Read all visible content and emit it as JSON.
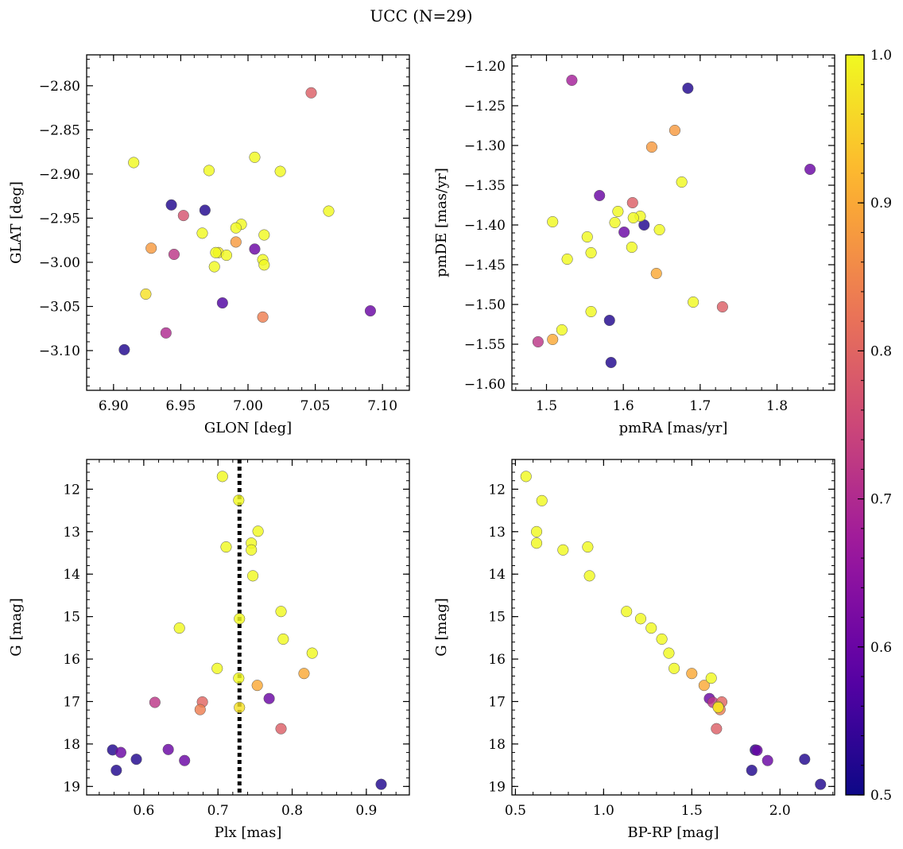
{
  "figure": {
    "title": "UCC (N=29)"
  },
  "colors": {
    "edge": "#555555",
    "dashed_line": "#000000",
    "colormap": [
      "#0d0887",
      "#5c01a6",
      "#9c179e",
      "#cc4778",
      "#ed7953",
      "#fdb42f",
      "#f0f921"
    ]
  },
  "colorbar": {
    "vmin": 0.5,
    "vmax": 1.0,
    "ticks": [
      0.5,
      0.6,
      0.7,
      0.8,
      0.9,
      1.0
    ],
    "tick_labels": [
      "0.5",
      "0.6",
      "0.7",
      "0.8",
      "0.9",
      "1.0"
    ]
  },
  "chart_data": [
    {
      "type": "scatter",
      "id": "glon-glat",
      "xlabel": "GLON [deg]",
      "ylabel": "GLAT [deg]",
      "xlim": [
        6.88,
        7.12
      ],
      "ylim": [
        -3.145,
        -2.765
      ],
      "y_inverted": false,
      "xticks": [
        6.9,
        6.95,
        7.0,
        7.05,
        7.1
      ],
      "xtick_labels": [
        "6.90",
        "6.95",
        "7.00",
        "7.05",
        "7.10"
      ],
      "yticks": [
        -2.8,
        -2.85,
        -2.9,
        -2.95,
        -3.0,
        -3.05,
        -3.1
      ],
      "ytick_labels": [
        "−2.80",
        "−2.85",
        "−2.90",
        "−2.95",
        "−3.00",
        "−3.05",
        "−3.10"
      ],
      "x_minor_step": 0.01,
      "y_minor_step": 0.01,
      "points": [
        {
          "x": 7.047,
          "y": -2.808,
          "c": 0.79
        },
        {
          "x": 6.915,
          "y": -2.887,
          "c": 1.0
        },
        {
          "x": 6.971,
          "y": -2.896,
          "c": 1.0
        },
        {
          "x": 7.005,
          "y": -2.881,
          "c": 1.0
        },
        {
          "x": 7.024,
          "y": -2.897,
          "c": 1.0
        },
        {
          "x": 6.943,
          "y": -2.935,
          "c": 0.52
        },
        {
          "x": 6.968,
          "y": -2.941,
          "c": 0.52
        },
        {
          "x": 6.952,
          "y": -2.947,
          "c": 0.77
        },
        {
          "x": 7.06,
          "y": -2.942,
          "c": 1.0
        },
        {
          "x": 6.995,
          "y": -2.957,
          "c": 1.0
        },
        {
          "x": 6.991,
          "y": -2.961,
          "c": 1.0
        },
        {
          "x": 6.966,
          "y": -2.967,
          "c": 1.0
        },
        {
          "x": 7.012,
          "y": -2.969,
          "c": 1.0
        },
        {
          "x": 6.991,
          "y": -2.977,
          "c": 0.88
        },
        {
          "x": 6.928,
          "y": -2.984,
          "c": 0.88
        },
        {
          "x": 7.005,
          "y": -2.985,
          "c": 0.6
        },
        {
          "x": 6.945,
          "y": -2.991,
          "c": 0.72
        },
        {
          "x": 6.978,
          "y": -2.989,
          "c": 0.98
        },
        {
          "x": 6.976,
          "y": -2.989,
          "c": 1.0
        },
        {
          "x": 6.984,
          "y": -2.992,
          "c": 1.0
        },
        {
          "x": 7.011,
          "y": -2.997,
          "c": 1.0
        },
        {
          "x": 7.012,
          "y": -3.003,
          "c": 1.0
        },
        {
          "x": 6.975,
          "y": -3.005,
          "c": 1.0
        },
        {
          "x": 6.924,
          "y": -3.036,
          "c": 0.97
        },
        {
          "x": 6.981,
          "y": -3.046,
          "c": 0.57
        },
        {
          "x": 7.091,
          "y": -3.055,
          "c": 0.6
        },
        {
          "x": 7.011,
          "y": -3.062,
          "c": 0.84
        },
        {
          "x": 6.939,
          "y": -3.08,
          "c": 0.7
        },
        {
          "x": 6.908,
          "y": -3.099,
          "c": 0.52
        }
      ]
    },
    {
      "type": "scatter",
      "id": "pmra-pmde",
      "xlabel": "pmRA [mas/yr]",
      "ylabel": "pmDE [mas/yr]",
      "xlim": [
        1.455,
        1.875
      ],
      "ylim": [
        -1.608,
        -1.186
      ],
      "y_inverted": false,
      "xticks": [
        1.5,
        1.6,
        1.7,
        1.8
      ],
      "xtick_labels": [
        "1.5",
        "1.6",
        "1.7",
        "1.8"
      ],
      "yticks": [
        -1.2,
        -1.25,
        -1.3,
        -1.35,
        -1.4,
        -1.45,
        -1.5,
        -1.55,
        -1.6
      ],
      "ytick_labels": [
        "−1.20",
        "−1.25",
        "−1.30",
        "−1.35",
        "−1.40",
        "−1.45",
        "−1.50",
        "−1.55",
        "−1.60"
      ],
      "x_minor_step": 0.02,
      "y_minor_step": 0.01,
      "points": [
        {
          "x": 1.533,
          "y": -1.218,
          "c": 0.68
        },
        {
          "x": 1.684,
          "y": -1.228,
          "c": 0.52
        },
        {
          "x": 1.667,
          "y": -1.281,
          "c": 0.88
        },
        {
          "x": 1.637,
          "y": -1.302,
          "c": 0.88
        },
        {
          "x": 1.843,
          "y": -1.33,
          "c": 0.6
        },
        {
          "x": 1.676,
          "y": -1.346,
          "c": 1.0
        },
        {
          "x": 1.569,
          "y": -1.363,
          "c": 0.6
        },
        {
          "x": 1.612,
          "y": -1.372,
          "c": 0.79
        },
        {
          "x": 1.593,
          "y": -1.383,
          "c": 1.0
        },
        {
          "x": 1.622,
          "y": -1.389,
          "c": 1.0
        },
        {
          "x": 1.613,
          "y": -1.391,
          "c": 1.0
        },
        {
          "x": 1.508,
          "y": -1.396,
          "c": 1.0
        },
        {
          "x": 1.589,
          "y": -1.397,
          "c": 1.0
        },
        {
          "x": 1.627,
          "y": -1.4,
          "c": 0.52
        },
        {
          "x": 1.647,
          "y": -1.406,
          "c": 1.0
        },
        {
          "x": 1.601,
          "y": -1.409,
          "c": 0.6
        },
        {
          "x": 1.553,
          "y": -1.415,
          "c": 1.0
        },
        {
          "x": 1.611,
          "y": -1.428,
          "c": 1.0
        },
        {
          "x": 1.558,
          "y": -1.435,
          "c": 1.0
        },
        {
          "x": 1.527,
          "y": -1.443,
          "c": 1.0
        },
        {
          "x": 1.643,
          "y": -1.461,
          "c": 0.9
        },
        {
          "x": 1.691,
          "y": -1.497,
          "c": 1.0
        },
        {
          "x": 1.729,
          "y": -1.503,
          "c": 0.79
        },
        {
          "x": 1.558,
          "y": -1.509,
          "c": 1.0
        },
        {
          "x": 1.582,
          "y": -1.52,
          "c": 0.52
        },
        {
          "x": 1.52,
          "y": -1.532,
          "c": 1.0
        },
        {
          "x": 1.508,
          "y": -1.544,
          "c": 0.9
        },
        {
          "x": 1.489,
          "y": -1.547,
          "c": 0.72
        },
        {
          "x": 1.584,
          "y": -1.573,
          "c": 0.52
        }
      ]
    },
    {
      "type": "scatter",
      "id": "plx-g",
      "xlabel": "Plx [mas]",
      "ylabel": "G [mag]",
      "xlim": [
        0.523,
        0.958
      ],
      "ylim": [
        11.3,
        19.2
      ],
      "y_inverted": true,
      "xticks": [
        0.6,
        0.7,
        0.8,
        0.9
      ],
      "xtick_labels": [
        "0.6",
        "0.7",
        "0.8",
        "0.9"
      ],
      "yticks": [
        12,
        13,
        14,
        15,
        16,
        17,
        18,
        19
      ],
      "ytick_labels": [
        "12",
        "13",
        "14",
        "15",
        "16",
        "17",
        "18",
        "19"
      ],
      "x_minor_step": 0.02,
      "y_minor_step": 0.2,
      "vline": {
        "x": 0.729
      },
      "points": [
        {
          "x": 0.706,
          "y": 11.7,
          "c": 1.0
        },
        {
          "x": 0.728,
          "y": 12.26,
          "c": 1.0
        },
        {
          "x": 0.754,
          "y": 12.99,
          "c": 1.0
        },
        {
          "x": 0.745,
          "y": 13.27,
          "c": 1.0
        },
        {
          "x": 0.711,
          "y": 13.36,
          "c": 1.0
        },
        {
          "x": 0.745,
          "y": 13.43,
          "c": 1.0
        },
        {
          "x": 0.747,
          "y": 14.04,
          "c": 1.0
        },
        {
          "x": 0.785,
          "y": 14.88,
          "c": 1.0
        },
        {
          "x": 0.729,
          "y": 15.05,
          "c": 1.0
        },
        {
          "x": 0.648,
          "y": 15.27,
          "c": 1.0
        },
        {
          "x": 0.788,
          "y": 15.53,
          "c": 1.0
        },
        {
          "x": 0.827,
          "y": 15.86,
          "c": 1.0
        },
        {
          "x": 0.699,
          "y": 16.22,
          "c": 1.0
        },
        {
          "x": 0.816,
          "y": 16.34,
          "c": 0.9
        },
        {
          "x": 0.728,
          "y": 16.45,
          "c": 1.0
        },
        {
          "x": 0.753,
          "y": 16.62,
          "c": 0.9
        },
        {
          "x": 0.769,
          "y": 16.93,
          "c": 0.6
        },
        {
          "x": 0.615,
          "y": 17.02,
          "c": 0.72
        },
        {
          "x": 0.679,
          "y": 17.01,
          "c": 0.8
        },
        {
          "x": 0.729,
          "y": 17.14,
          "c": 0.97
        },
        {
          "x": 0.676,
          "y": 17.19,
          "c": 0.84
        },
        {
          "x": 0.785,
          "y": 17.64,
          "c": 0.79
        },
        {
          "x": 0.558,
          "y": 18.14,
          "c": 0.52
        },
        {
          "x": 0.569,
          "y": 18.2,
          "c": 0.6
        },
        {
          "x": 0.633,
          "y": 18.13,
          "c": 0.6
        },
        {
          "x": 0.59,
          "y": 18.36,
          "c": 0.52
        },
        {
          "x": 0.655,
          "y": 18.39,
          "c": 0.6
        },
        {
          "x": 0.563,
          "y": 18.62,
          "c": 0.52
        },
        {
          "x": 0.92,
          "y": 18.95,
          "c": 0.52
        }
      ]
    },
    {
      "type": "scatter",
      "id": "bprp-g",
      "xlabel": "BP-RP [mag]",
      "ylabel": "G [mag]",
      "xlim": [
        0.48,
        2.31
      ],
      "ylim": [
        11.3,
        19.2
      ],
      "y_inverted": true,
      "xticks": [
        0.5,
        1.0,
        1.5,
        2.0
      ],
      "xtick_labels": [
        "0.5",
        "1.0",
        "1.5",
        "2.0"
      ],
      "yticks": [
        12,
        13,
        14,
        15,
        16,
        17,
        18,
        19
      ],
      "ytick_labels": [
        "12",
        "13",
        "14",
        "15",
        "16",
        "17",
        "18",
        "19"
      ],
      "x_minor_step": 0.1,
      "y_minor_step": 0.2,
      "points": [
        {
          "x": 0.56,
          "y": 11.7,
          "c": 1.0
        },
        {
          "x": 0.65,
          "y": 12.27,
          "c": 1.0
        },
        {
          "x": 0.62,
          "y": 13.0,
          "c": 1.0
        },
        {
          "x": 0.62,
          "y": 13.27,
          "c": 1.0
        },
        {
          "x": 0.91,
          "y": 13.36,
          "c": 1.0
        },
        {
          "x": 0.77,
          "y": 13.43,
          "c": 1.0
        },
        {
          "x": 0.92,
          "y": 14.04,
          "c": 1.0
        },
        {
          "x": 1.13,
          "y": 14.88,
          "c": 1.0
        },
        {
          "x": 1.21,
          "y": 15.05,
          "c": 1.0
        },
        {
          "x": 1.27,
          "y": 15.27,
          "c": 1.0
        },
        {
          "x": 1.33,
          "y": 15.53,
          "c": 1.0
        },
        {
          "x": 1.37,
          "y": 15.86,
          "c": 1.0
        },
        {
          "x": 1.4,
          "y": 16.22,
          "c": 1.0
        },
        {
          "x": 1.5,
          "y": 16.34,
          "c": 0.9
        },
        {
          "x": 1.61,
          "y": 16.45,
          "c": 1.0
        },
        {
          "x": 1.57,
          "y": 16.62,
          "c": 0.9
        },
        {
          "x": 1.6,
          "y": 16.93,
          "c": 0.6
        },
        {
          "x": 1.62,
          "y": 17.02,
          "c": 0.72
        },
        {
          "x": 1.67,
          "y": 17.01,
          "c": 0.8
        },
        {
          "x": 1.65,
          "y": 17.14,
          "c": 0.97
        },
        {
          "x": 1.66,
          "y": 17.19,
          "c": 0.84
        },
        {
          "x": 1.64,
          "y": 17.64,
          "c": 0.79
        },
        {
          "x": 1.86,
          "y": 18.14,
          "c": 0.52
        },
        {
          "x": 1.87,
          "y": 18.15,
          "c": 0.6
        },
        {
          "x": 2.14,
          "y": 18.36,
          "c": 0.52
        },
        {
          "x": 1.93,
          "y": 18.39,
          "c": 0.6
        },
        {
          "x": 1.84,
          "y": 18.62,
          "c": 0.52
        },
        {
          "x": 2.23,
          "y": 18.95,
          "c": 0.52
        },
        {
          "x": 1.65,
          "y": 17.12,
          "c": 0.95
        }
      ]
    }
  ]
}
